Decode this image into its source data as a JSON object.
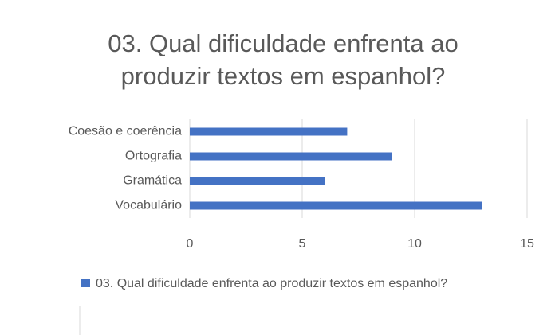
{
  "chart_data": {
    "type": "hbar",
    "title": "03. Qual dificuldade enfrenta ao produzir textos em espanhol?",
    "categories": [
      "Coesão e coerência",
      "Ortografia",
      "Gramática",
      "Vocabulário"
    ],
    "series": [
      {
        "name": "03. Qual dificuldade enfrenta ao produzir textos em espanhol?",
        "color": "#4472c4",
        "values": [
          7,
          9,
          6,
          13
        ]
      }
    ],
    "xlim": [
      0,
      15
    ],
    "xticks": [
      0,
      5,
      10,
      15
    ],
    "grid": true,
    "legend": "bottom"
  }
}
